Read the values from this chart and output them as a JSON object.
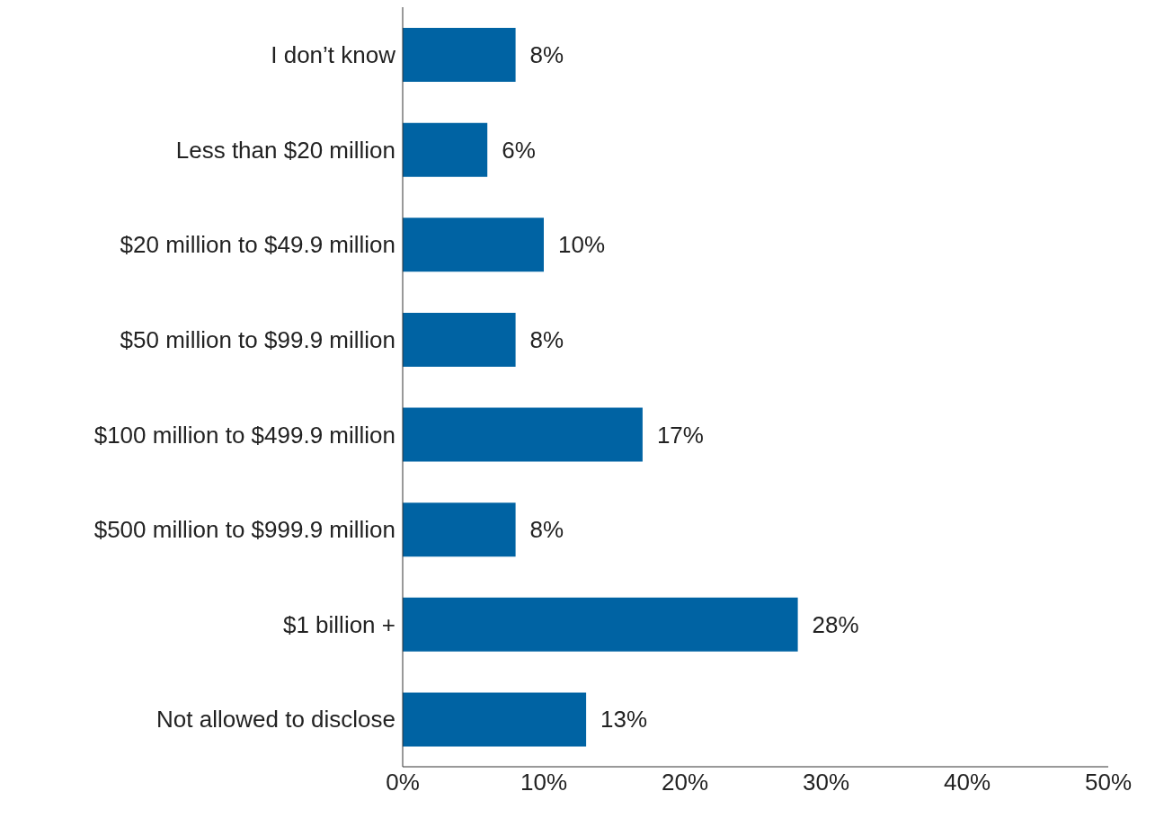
{
  "chart_data": {
    "type": "bar",
    "orientation": "horizontal",
    "categories": [
      "I don’t know",
      "Less than $20 million",
      "$20 million to $49.9 million",
      "$50 million to $99.9 million",
      "$100 million to $499.9 million",
      "$500 million to $999.9 million",
      "$1 billion +",
      "Not allowed to disclose"
    ],
    "values": [
      8,
      6,
      10,
      8,
      17,
      8,
      28,
      13
    ],
    "value_labels": [
      "8%",
      "6%",
      "10%",
      "8%",
      "17%",
      "8%",
      "28%",
      "13%"
    ],
    "color": "#0063a3",
    "xlim": [
      0,
      50
    ],
    "xticks": [
      {
        "value": 0,
        "label": "0%"
      },
      {
        "value": 10,
        "label": "10%"
      },
      {
        "value": 20,
        "label": "20%"
      },
      {
        "value": 30,
        "label": "30%"
      },
      {
        "value": 40,
        "label": "40%"
      },
      {
        "value": 50,
        "label": "50%"
      }
    ],
    "grid": false
  }
}
